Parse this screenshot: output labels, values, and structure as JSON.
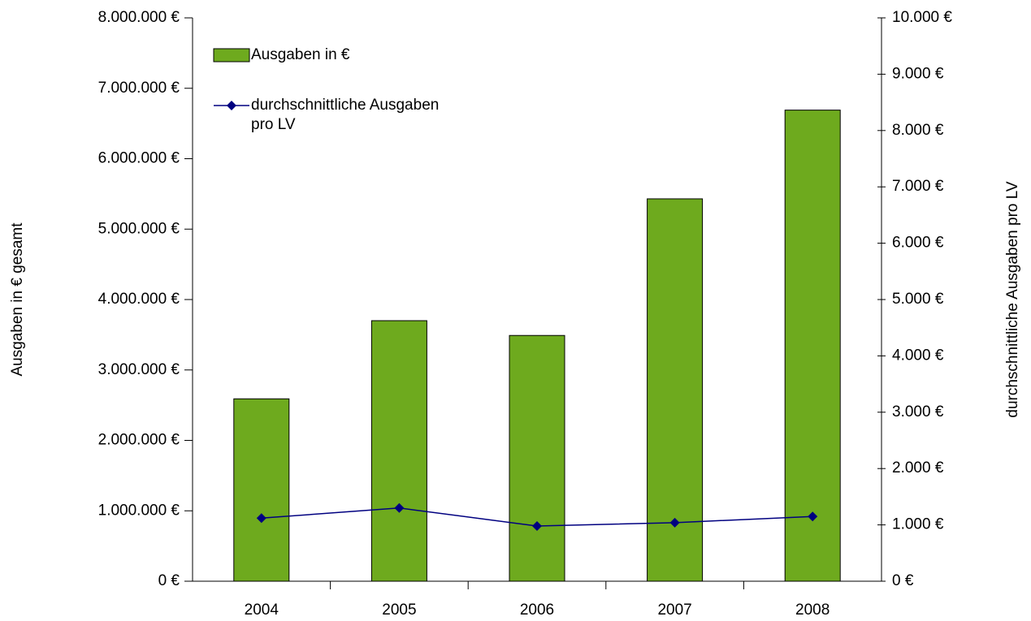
{
  "chart_data": {
    "type": "bar_line",
    "y_label": "Ausgaben in € gesamt",
    "y2_label": "durchschnittliche Ausgaben pro LV",
    "categories": [
      "2004",
      "2005",
      "2006",
      "2007",
      "2008"
    ],
    "series": [
      {
        "name": "Ausgaben in €",
        "type": "bar",
        "color": "#6eaa1e",
        "values": [
          2590000,
          3700000,
          3490000,
          5430000,
          6690000
        ]
      },
      {
        "name": "durchschnittliche Ausgaben pro LV",
        "type": "line",
        "axis": "y2",
        "color": "#000080",
        "values": [
          1120,
          1300,
          980,
          1040,
          1150
        ]
      }
    ],
    "ylim": [
      0,
      8000000
    ],
    "yticks": [
      {
        "value": 0,
        "label": "0 €"
      },
      {
        "value": 1000000,
        "label": "1.000.000 €"
      },
      {
        "value": 2000000,
        "label": "2.000.000 €"
      },
      {
        "value": 3000000,
        "label": "3.000.000 €"
      },
      {
        "value": 4000000,
        "label": "4.000.000 €"
      },
      {
        "value": 5000000,
        "label": "5.000.000 €"
      },
      {
        "value": 6000000,
        "label": "6.000.000 €"
      },
      {
        "value": 7000000,
        "label": "7.000.000 €"
      },
      {
        "value": 8000000,
        "label": "8.000.000 €"
      }
    ],
    "y2lim": [
      0,
      10000
    ],
    "y2ticks": [
      {
        "value": 0,
        "label": "0 €"
      },
      {
        "value": 1000,
        "label": "1.000 €"
      },
      {
        "value": 2000,
        "label": "2.000 €"
      },
      {
        "value": 3000,
        "label": "3.000 €"
      },
      {
        "value": 4000,
        "label": "4.000 €"
      },
      {
        "value": 5000,
        "label": "5.000 €"
      },
      {
        "value": 6000,
        "label": "6.000 €"
      },
      {
        "value": 7000,
        "label": "7.000 €"
      },
      {
        "value": 8000,
        "label": "8.000 €"
      },
      {
        "value": 9000,
        "label": "9.000 €"
      },
      {
        "value": 10000,
        "label": "10.000 €"
      }
    ],
    "legend": "upper left",
    "grid": false
  }
}
